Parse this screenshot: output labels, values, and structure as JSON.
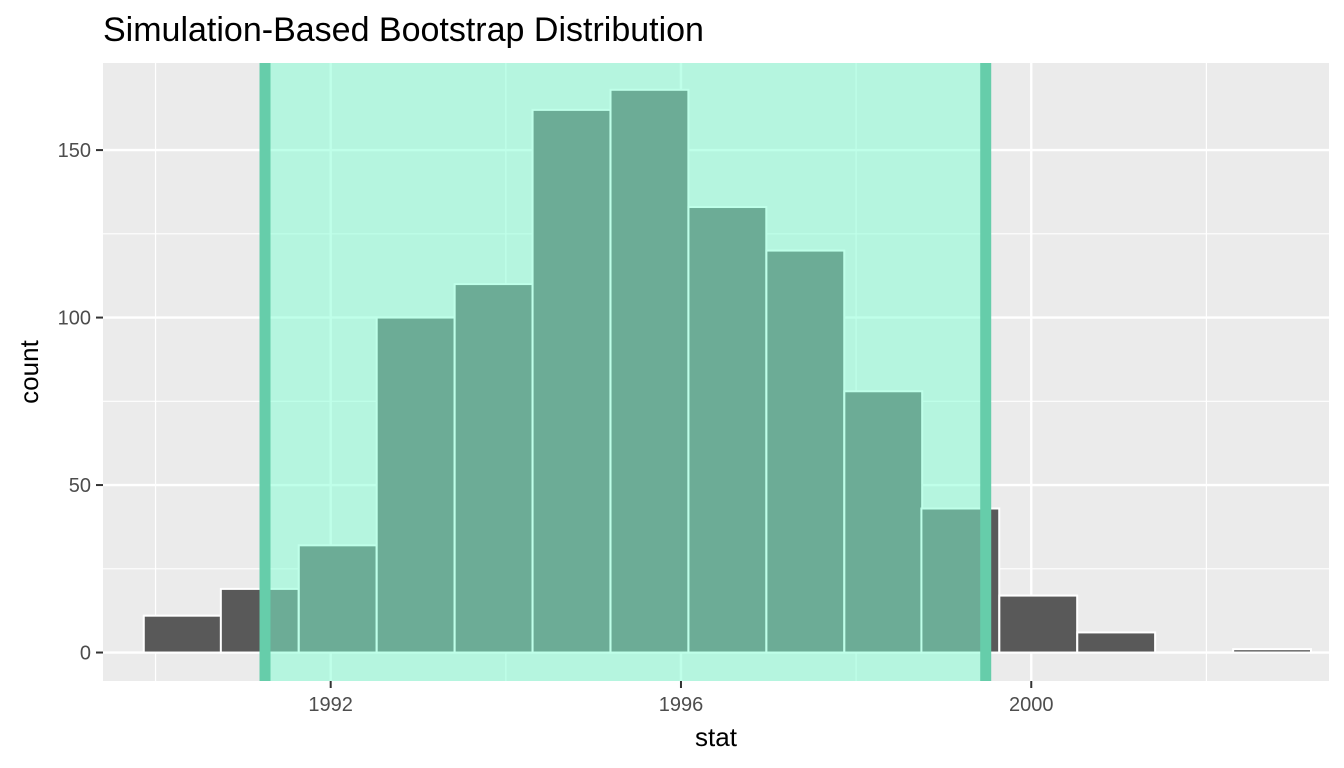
{
  "chart_data": {
    "type": "bar",
    "title": "Simulation-Based Bootstrap Distribution",
    "xlabel": "stat",
    "ylabel": "count",
    "xlim": [
      1989.4,
      2003.4
    ],
    "ylim": [
      -8.5,
      176
    ],
    "x_ticks": [
      1992,
      1996,
      2000
    ],
    "x_tick_labels": [
      "1992",
      "1996",
      "2000"
    ],
    "y_ticks": [
      0,
      50,
      100,
      150
    ],
    "y_tick_labels": [
      "0",
      "50",
      "100",
      "150"
    ],
    "x_minor_ticks": [
      1990,
      1994,
      1998,
      2002
    ],
    "y_minor_ticks": [
      25,
      75,
      125
    ],
    "grid": true,
    "bin_width": 0.889,
    "bins": [
      {
        "center": 1990.31,
        "count": 11
      },
      {
        "center": 1991.19,
        "count": 19
      },
      {
        "center": 1992.08,
        "count": 32
      },
      {
        "center": 1992.97,
        "count": 100
      },
      {
        "center": 1993.86,
        "count": 110
      },
      {
        "center": 1994.75,
        "count": 162
      },
      {
        "center": 1995.64,
        "count": 168
      },
      {
        "center": 1996.53,
        "count": 133
      },
      {
        "center": 1997.42,
        "count": 120
      },
      {
        "center": 1998.31,
        "count": 78
      },
      {
        "center": 1999.19,
        "count": 43
      },
      {
        "center": 2000.08,
        "count": 17
      },
      {
        "center": 2000.97,
        "count": 6
      },
      {
        "center": 2001.86,
        "count": 0
      },
      {
        "center": 2002.75,
        "count": 1
      }
    ],
    "confidence_interval": {
      "lower": 1991.25,
      "upper": 1999.48
    },
    "colors": {
      "panel_background": "#ebebeb",
      "grid": "#ffffff",
      "bar_fill": "#595959",
      "bar_outline": "#ffffff",
      "ci_shade": "#7fffd4",
      "ci_lines": "#66cdaa",
      "tick_text": "#4d4d4d",
      "tick_mark": "#333333"
    }
  }
}
